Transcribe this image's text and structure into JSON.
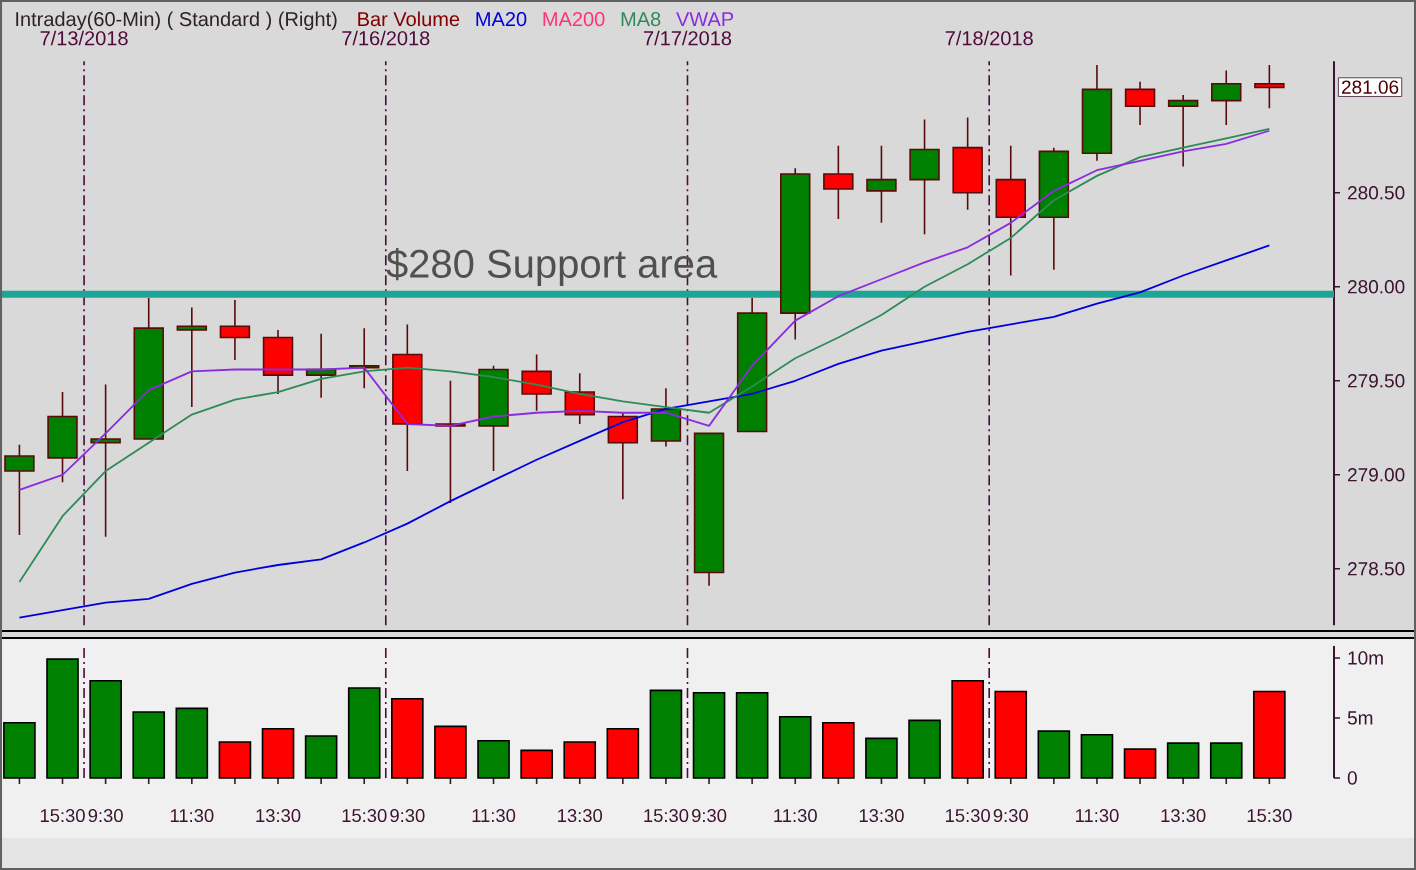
{
  "chart_data": [
    {
      "type": "candlestick",
      "title": "Intraday(60-Min) ( Standard ) (Right)",
      "subtitle": "Bar Volume",
      "categories": [
        null,
        null,
        null,
        null,
        null,
        null,
        null,
        null,
        null,
        null,
        null,
        null,
        null,
        null,
        null,
        null,
        null,
        null,
        null,
        null,
        null,
        null,
        null,
        null,
        null,
        null,
        null,
        null,
        null,
        null
      ],
      "ohlc": [
        [
          279.02,
          279.16,
          278.68,
          279.1
        ],
        [
          279.09,
          279.44,
          278.96,
          279.31
        ],
        [
          279.17,
          279.48,
          278.67,
          279.19
        ],
        [
          279.19,
          279.94,
          279.19,
          279.78
        ],
        [
          279.77,
          279.89,
          279.36,
          279.79
        ],
        [
          279.79,
          279.93,
          279.61,
          279.73
        ],
        [
          279.73,
          279.77,
          279.43,
          279.53
        ],
        [
          279.53,
          279.75,
          279.41,
          279.56
        ],
        [
          279.57,
          279.78,
          279.46,
          279.58
        ],
        [
          279.64,
          279.8,
          279.02,
          279.27
        ],
        [
          279.27,
          279.5,
          278.85,
          279.26
        ],
        [
          279.26,
          279.58,
          279.02,
          279.56
        ],
        [
          279.55,
          279.64,
          279.34,
          279.43
        ],
        [
          279.44,
          279.54,
          279.27,
          279.32
        ],
        [
          279.31,
          279.33,
          278.87,
          279.17
        ],
        [
          279.18,
          279.46,
          279.15,
          279.35
        ],
        [
          278.48,
          279.22,
          278.41,
          279.22
        ],
        [
          279.23,
          279.94,
          279.23,
          279.86
        ],
        [
          279.86,
          280.63,
          279.72,
          280.6
        ],
        [
          280.6,
          280.75,
          280.36,
          280.52
        ],
        [
          280.51,
          280.75,
          280.34,
          280.57
        ],
        [
          280.57,
          280.89,
          280.28,
          280.73
        ],
        [
          280.74,
          280.9,
          280.41,
          280.5
        ],
        [
          280.57,
          280.75,
          280.06,
          280.37
        ],
        [
          280.37,
          280.74,
          280.09,
          280.72
        ],
        [
          280.71,
          281.18,
          280.67,
          281.05
        ],
        [
          281.05,
          281.09,
          280.86,
          280.96
        ],
        [
          280.96,
          281.02,
          280.64,
          280.99
        ],
        [
          280.99,
          281.15,
          280.86,
          281.08
        ],
        [
          281.08,
          281.18,
          280.95,
          281.06
        ]
      ],
      "colors": [
        "#008000",
        "#008000",
        "#008000",
        "#008000",
        "#008000",
        "#ff0000",
        "#ff0000",
        "#008000",
        "#008000",
        "#ff0000",
        "#ff0000",
        "#008000",
        "#ff0000",
        "#ff0000",
        "#ff0000",
        "#008000",
        "#008000",
        "#008000",
        "#008000",
        "#ff0000",
        "#008000",
        "#008000",
        "#ff0000",
        "#ff0000",
        "#008000",
        "#008000",
        "#ff0000",
        "#008000",
        "#008000",
        "#ff0000"
      ],
      "series": [
        {
          "name": "MA20",
          "type": "line",
          "color": "#0000dd",
          "values": [
            278.24,
            278.28,
            278.32,
            278.34,
            278.42,
            278.48,
            278.52,
            278.55,
            278.64,
            278.74,
            278.86,
            278.97,
            279.08,
            279.18,
            279.28,
            279.35,
            279.39,
            279.43,
            279.5,
            279.59,
            279.66,
            279.71,
            279.76,
            279.8,
            279.84,
            279.91,
            279.97,
            280.06,
            280.14,
            280.22
          ]
        },
        {
          "name": "MA200",
          "type": "line",
          "color": "#ff3377",
          "values": [
            null,
            null,
            null,
            null,
            null,
            null,
            null,
            null,
            null,
            null,
            null,
            null,
            null,
            null,
            null,
            null,
            null,
            null,
            null,
            null,
            null,
            null,
            null,
            null,
            null,
            null,
            null,
            null,
            null,
            null
          ]
        },
        {
          "name": "MA8",
          "type": "line",
          "color": "#2e8b57",
          "values": [
            278.43,
            278.78,
            279.02,
            279.17,
            279.32,
            279.4,
            279.44,
            279.51,
            279.55,
            279.57,
            279.55,
            279.52,
            279.48,
            279.43,
            279.39,
            279.36,
            279.33,
            279.47,
            279.62,
            279.73,
            279.85,
            280.0,
            280.12,
            280.26,
            280.46,
            280.59,
            280.69,
            280.74,
            280.79,
            280.84
          ]
        },
        {
          "name": "VWAP",
          "type": "line",
          "color": "#8a2be2",
          "values": [
            278.92,
            279.0,
            279.22,
            279.45,
            279.55,
            279.56,
            279.56,
            279.56,
            279.57,
            279.27,
            279.26,
            279.31,
            279.33,
            279.34,
            279.33,
            279.33,
            279.26,
            279.58,
            279.82,
            279.95,
            280.04,
            280.13,
            280.21,
            280.34,
            280.51,
            280.62,
            280.67,
            280.72,
            280.76,
            280.83
          ]
        }
      ],
      "ylim": [
        278.2,
        281.2
      ],
      "yticks": [
        {
          "value": 278.5,
          "label": "278.50"
        },
        {
          "value": 279,
          "label": "279.00"
        },
        {
          "value": 279.5,
          "label": "279.50"
        },
        {
          "value": 280,
          "label": "280.00"
        },
        {
          "value": 280.5,
          "label": "280.50"
        }
      ],
      "tick_labels": "y",
      "ref_lines": [
        {
          "axis": "y",
          "value": 279.96,
          "label": "$280 Support area",
          "color": "#1fa595"
        }
      ],
      "annotations": [
        "281.06",
        "7/13/2018",
        "7/16/2018",
        "7/17/2018",
        "7/18/2018"
      ]
    },
    {
      "type": "bar",
      "categories": [
        null,
        "15:30",
        "9:30",
        null,
        "11:30",
        null,
        "13:30",
        null,
        "15:30",
        "9:30",
        null,
        "11:30",
        null,
        "13:30",
        null,
        "15:30",
        "9:30",
        null,
        "11:30",
        null,
        "13:30",
        null,
        "15:30",
        "9:30",
        null,
        "11:30",
        null,
        "13:30",
        null,
        "15:30"
      ],
      "values": [
        4.6,
        9.9,
        8.1,
        5.5,
        5.8,
        3.0,
        4.1,
        3.5,
        7.5,
        6.6,
        4.3,
        3.1,
        2.3,
        3.0,
        4.1,
        7.3,
        7.1,
        7.1,
        5.1,
        4.6,
        3.3,
        4.8,
        8.1,
        7.2,
        3.9,
        3.6,
        2.4,
        2.9,
        2.9,
        7.2
      ],
      "colors": [
        "#008000",
        "#008000",
        "#008000",
        "#008000",
        "#008000",
        "#ff0000",
        "#ff0000",
        "#008000",
        "#008000",
        "#ff0000",
        "#ff0000",
        "#008000",
        "#ff0000",
        "#ff0000",
        "#ff0000",
        "#008000",
        "#008000",
        "#008000",
        "#008000",
        "#ff0000",
        "#008000",
        "#008000",
        "#ff0000",
        "#ff0000",
        "#008000",
        "#008000",
        "#ff0000",
        "#008000",
        "#008000",
        "#ff0000"
      ],
      "ylim": [
        0,
        11
      ],
      "yticks": [
        0,
        {
          "value": 5,
          "label": "5m"
        },
        {
          "value": 10,
          "label": "10m"
        }
      ]
    }
  ]
}
